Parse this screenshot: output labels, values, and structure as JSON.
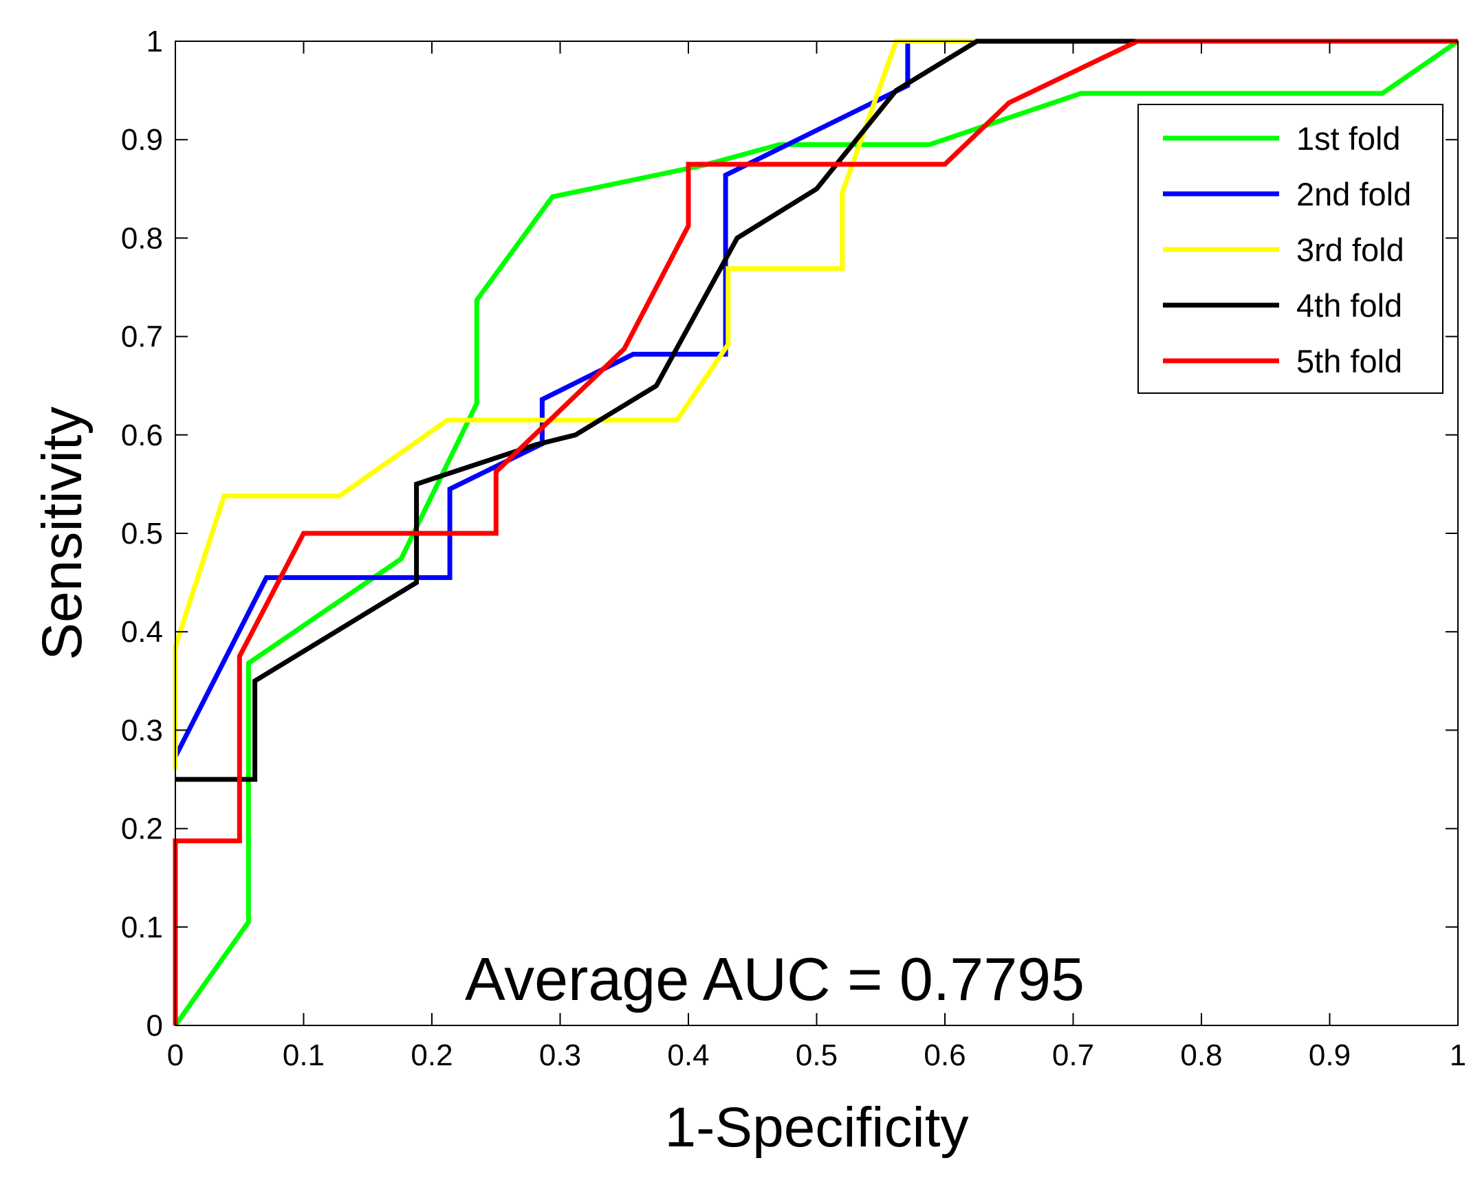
{
  "chart_data": {
    "type": "line",
    "title": "",
    "xlabel": "1-Specificity",
    "ylabel": "Sensitivity",
    "xlim": [
      0,
      1
    ],
    "ylim": [
      0,
      1
    ],
    "xticks": [
      0,
      0.1,
      0.2,
      0.3,
      0.4,
      0.5,
      0.6,
      0.7,
      0.8,
      0.9,
      1
    ],
    "yticks": [
      0,
      0.1,
      0.2,
      0.3,
      0.4,
      0.5,
      0.6,
      0.7,
      0.8,
      0.9,
      1
    ],
    "xtick_labels": [
      "0",
      "0.1",
      "0.2",
      "0.3",
      "0.4",
      "0.5",
      "0.6",
      "0.7",
      "0.8",
      "0.9",
      "1"
    ],
    "ytick_labels": [
      "0",
      "0.1",
      "0.2",
      "0.3",
      "0.4",
      "0.5",
      "0.6",
      "0.7",
      "0.8",
      "0.9",
      "1"
    ],
    "grid": false,
    "legend_position": "top-right",
    "annotation": "Average AUC = 0.7795",
    "series": [
      {
        "name": "1st fold",
        "color": "#00ff00",
        "x": [
          0,
          0.057,
          0.057,
          0.176,
          0.235,
          0.235,
          0.294,
          0.412,
          0.471,
          0.588,
          0.706,
          0.941,
          1
        ],
        "y": [
          0,
          0.105,
          0.368,
          0.474,
          0.632,
          0.737,
          0.842,
          0.874,
          0.895,
          0.895,
          0.947,
          0.947,
          1
        ]
      },
      {
        "name": "2nd fold",
        "color": "#0000ff",
        "x": [
          0,
          0.071,
          0.214,
          0.214,
          0.286,
          0.286,
          0.357,
          0.429,
          0.429,
          0.571,
          0.571
        ],
        "y": [
          0.273,
          0.455,
          0.455,
          0.545,
          0.591,
          0.636,
          0.682,
          0.682,
          0.864,
          0.955,
          1
        ]
      },
      {
        "name": "3rd fold",
        "color": "#ffff00",
        "x": [
          0,
          0,
          0.038,
          0.128,
          0.212,
          0.391,
          0.431,
          0.431,
          0.52,
          0.52,
          0.562,
          0.631,
          1
        ],
        "y": [
          0.26,
          0.385,
          0.538,
          0.538,
          0.615,
          0.615,
          0.692,
          0.769,
          0.769,
          0.846,
          1,
          1,
          1
        ]
      },
      {
        "name": "4th fold",
        "color": "#000000",
        "x": [
          0,
          0.062,
          0.062,
          0.188,
          0.188,
          0.281,
          0.312,
          0.375,
          0.438,
          0.5,
          0.562,
          0.625,
          1
        ],
        "y": [
          0.25,
          0.25,
          0.35,
          0.45,
          0.55,
          0.59,
          0.6,
          0.65,
          0.8,
          0.85,
          0.95,
          1,
          1
        ]
      },
      {
        "name": "5th fold",
        "color": "#ff0000",
        "x": [
          0,
          0,
          0.05,
          0.05,
          0.1,
          0.25,
          0.25,
          0.35,
          0.4,
          0.4,
          0.6,
          0.65,
          0.75,
          1
        ],
        "y": [
          0,
          0.1875,
          0.1875,
          0.375,
          0.5,
          0.5,
          0.5625,
          0.6875,
          0.8125,
          0.875,
          0.875,
          0.9375,
          1,
          1
        ]
      }
    ]
  }
}
